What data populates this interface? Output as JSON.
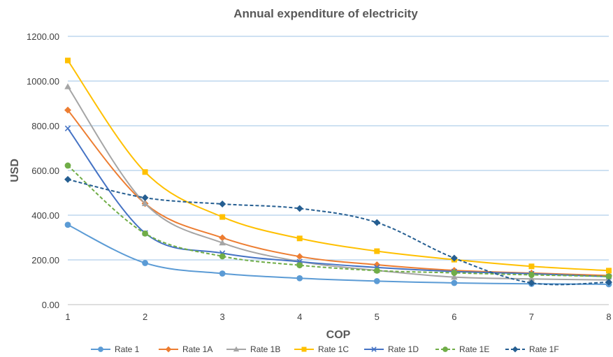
{
  "chart_data": {
    "type": "line",
    "title": "Annual expenditure of electricity",
    "xlabel": "COP",
    "ylabel": "USD",
    "x": [
      1,
      2,
      3,
      4,
      5,
      6,
      7,
      8
    ],
    "xlim": [
      1,
      8
    ],
    "ylim": [
      0,
      1200
    ],
    "y_ticks": [
      "0.00",
      "200.00",
      "400.00",
      "600.00",
      "800.00",
      "1000.00",
      "1200.00"
    ],
    "x_ticks": [
      "1",
      "2",
      "3",
      "4",
      "5",
      "6",
      "7",
      "8"
    ],
    "grid": true,
    "legend_position": "bottom",
    "series": [
      {
        "name": "Rate 1",
        "color": "#5B9BD5",
        "marker": "circle",
        "dashed": false,
        "values": [
          357,
          186,
          139,
          118,
          105,
          97,
          93,
          91
        ]
      },
      {
        "name": "Rate 1A",
        "color": "#ED7D31",
        "marker": "diamond",
        "dashed": false,
        "values": [
          870,
          452,
          299,
          215,
          178,
          153,
          141,
          130
        ]
      },
      {
        "name": "Rate 1B",
        "color": "#A5A5A5",
        "marker": "triangle",
        "dashed": false,
        "values": [
          975,
          452,
          276,
          193,
          153,
          123,
          115,
          110
        ]
      },
      {
        "name": "Rate 1C",
        "color": "#FFC000",
        "marker": "square",
        "dashed": false,
        "values": [
          1092,
          593,
          392,
          296,
          239,
          201,
          171,
          152
        ]
      },
      {
        "name": "Rate 1D",
        "color": "#4472C4",
        "marker": "x",
        "dashed": false,
        "values": [
          788,
          320,
          230,
          192,
          166,
          148,
          138,
          125
        ]
      },
      {
        "name": "Rate 1E",
        "color": "#70AD47",
        "marker": "circle",
        "dashed": true,
        "values": [
          622,
          318,
          216,
          176,
          152,
          142,
          133,
          126
        ]
      },
      {
        "name": "Rate 1F",
        "color": "#255E91",
        "marker": "diamond",
        "dashed": true,
        "values": [
          560,
          478,
          450,
          430,
          367,
          208,
          97,
          100
        ]
      }
    ]
  }
}
